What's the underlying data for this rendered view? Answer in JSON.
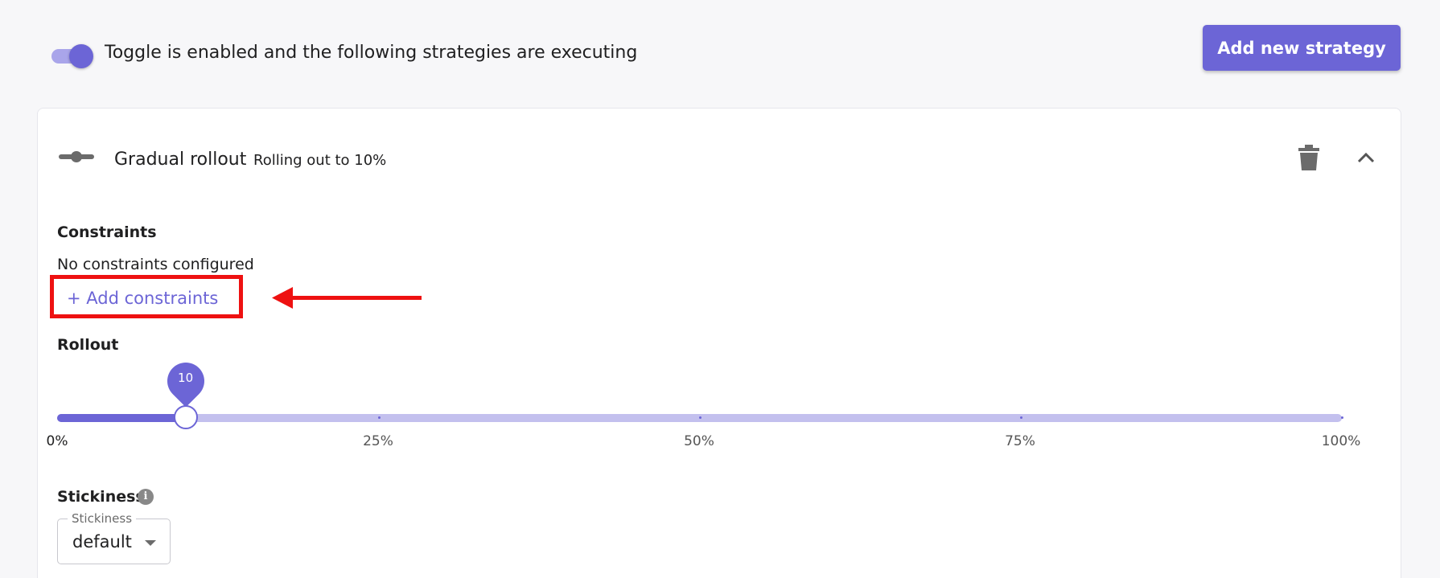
{
  "header": {
    "toggle_enabled": true,
    "toggle_text": "Toggle is enabled and the following strategies are executing",
    "add_strategy_label": "Add new strategy"
  },
  "strategy": {
    "name": "Gradual rollout",
    "description": "Rolling out to 10%",
    "constraints": {
      "title": "Constraints",
      "empty_text": "No constraints configured",
      "add_label": "+ Add constraints"
    },
    "rollout": {
      "title": "Rollout",
      "value": 10,
      "value_label": "10",
      "marks": [
        "0%",
        "25%",
        "50%",
        "75%",
        "100%"
      ]
    },
    "stickiness": {
      "title": "Stickiness",
      "field_label": "Stickiness",
      "value": "default"
    }
  },
  "colors": {
    "primary": "#6c65d6",
    "primary_light": "#c3c0ee",
    "highlight": "#ee1111"
  },
  "icons": {
    "strategy": "slider-icon",
    "delete": "trash-icon",
    "collapse": "chevron-up-icon",
    "info": "info-icon",
    "annotation_arrow": "arrow-left-icon"
  }
}
